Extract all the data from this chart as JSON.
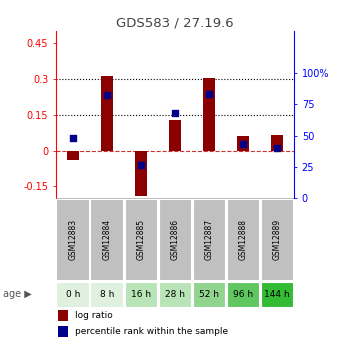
{
  "title": "GDS583 / 27.19.6",
  "categories": [
    "GSM12883",
    "GSM12884",
    "GSM12885",
    "GSM12886",
    "GSM12887",
    "GSM12888",
    "GSM12889"
  ],
  "age_labels": [
    "0 h",
    "8 h",
    "16 h",
    "28 h",
    "52 h",
    "96 h",
    "144 h"
  ],
  "log_ratio": [
    -0.04,
    0.31,
    -0.19,
    0.13,
    0.305,
    0.06,
    0.065
  ],
  "percentile_rank": [
    48,
    82,
    27,
    68,
    83,
    43,
    40
  ],
  "left_ylim": [
    -0.2,
    0.5
  ],
  "right_ylim": [
    0,
    133.33
  ],
  "left_yticks": [
    -0.15,
    0,
    0.15,
    0.3,
    0.45
  ],
  "right_yticks": [
    0,
    25,
    50,
    75,
    100
  ],
  "hline_values": [
    0.15,
    0.3
  ],
  "bar_color": "#8B0000",
  "dot_color": "#00008B",
  "zero_line_color": "#CC3333",
  "title_color": "#444444",
  "age_colors": [
    "#dff0df",
    "#dff0df",
    "#b8e4b8",
    "#b8e4b8",
    "#90d490",
    "#60c760",
    "#33bb33"
  ],
  "gsm_bg": "#c0c0c0",
  "legend_bar_color": "#8B0000",
  "legend_dot_color": "#00008B",
  "bar_width": 0.35
}
